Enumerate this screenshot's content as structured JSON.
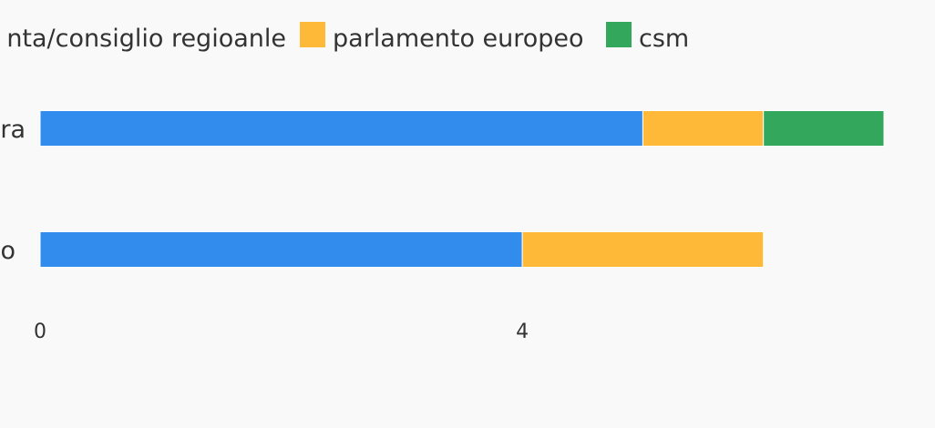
{
  "chart_data": {
    "type": "bar",
    "orientation": "horizontal",
    "stacked": true,
    "categories": [
      "ra",
      "o"
    ],
    "series": [
      {
        "name": "nta/consiglio regioanle",
        "color": "#318ced",
        "values": [
          5,
          4
        ]
      },
      {
        "name": "parlamento europeo",
        "color": "#ffb938",
        "values": [
          1,
          2
        ]
      },
      {
        "name": "csm",
        "color": "#33a75b",
        "values": [
          1,
          0
        ]
      }
    ],
    "xlim": [
      0,
      7
    ],
    "x_ticks": [
      {
        "value": 0,
        "label": "0"
      },
      {
        "value": 4,
        "label": "4"
      }
    ],
    "legend_position": "top",
    "grid": false
  }
}
